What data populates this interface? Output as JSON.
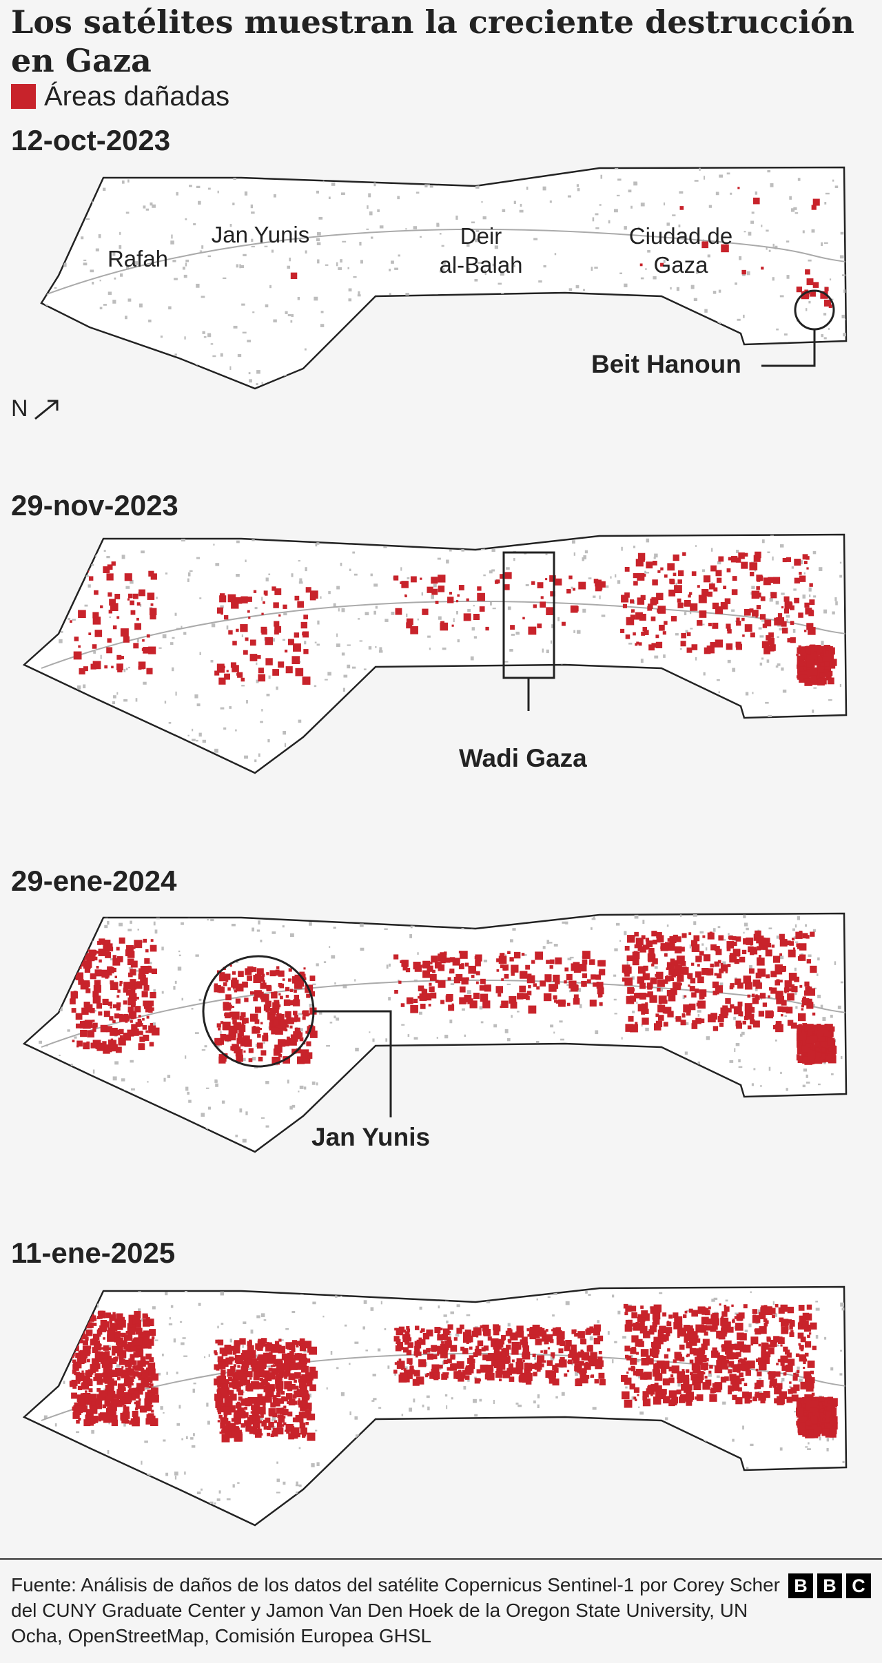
{
  "title": "Los satélites muestran la creciente destrucción en Gaza",
  "legend": {
    "label": "Áreas dañadas",
    "color": "#c8232b"
  },
  "north_label": "N",
  "panels": [
    {
      "date": "12-oct-2023",
      "place_labels": [
        "Rafah",
        "Jan Yunis",
        "Deir\nal-Balah",
        "Ciudad de\nGaza"
      ],
      "callout": "Beit Hanoun"
    },
    {
      "date": "29-nov-2023",
      "callout": "Wadi Gaza"
    },
    {
      "date": "29-ene-2024",
      "callout": "Jan Yunis"
    },
    {
      "date": "11-ene-2025"
    }
  ],
  "source": "Fuente: Análisis de daños de los datos del satélite Copernicus Sentinel-1 por Corey Scher del CUNY Graduate Center y Jamon Van Den Hoek de la Oregon State University, UN Ocha, OpenStreetMap, Comisión Europea GHSL",
  "logo": [
    "B",
    "B",
    "C"
  ],
  "colors": {
    "damage": "#c8232b",
    "land": "#ffffff",
    "outline": "#222222",
    "urban": "#bdbdbd",
    "background": "#f5f5f5"
  }
}
